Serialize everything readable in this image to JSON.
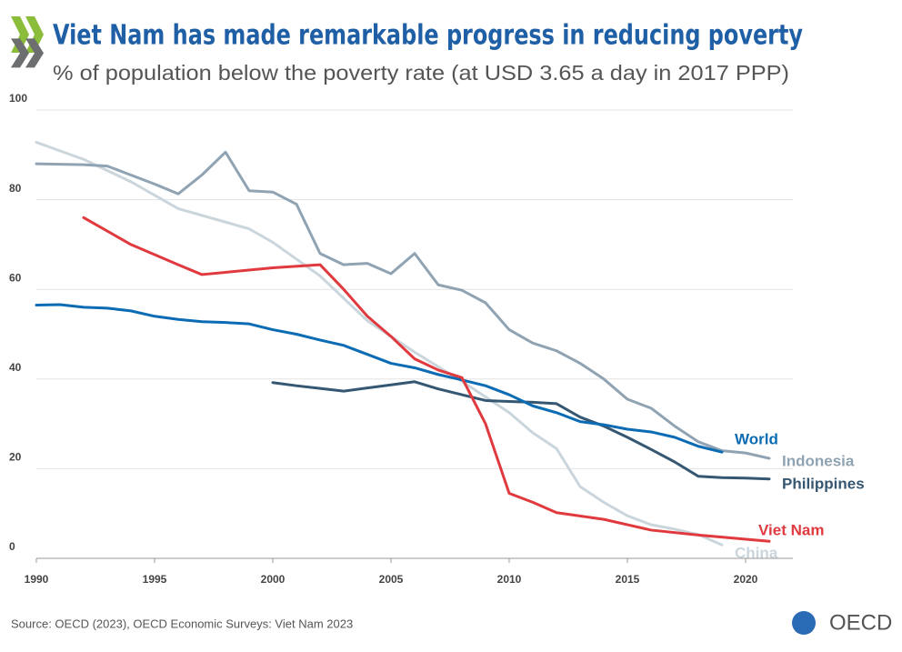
{
  "chart_data": {
    "type": "line",
    "title": "Viet Nam has made remarkable progress in reducing poverty",
    "subtitle": "% of population below the poverty rate (at USD 3.65 a day in 2017 PPP)",
    "source": "Source: OECD (2023), OECD Economic Surveys: Viet Nam 2023",
    "logo": "OECD",
    "xlim": [
      1990,
      2022
    ],
    "xticks": [
      1990,
      1995,
      2000,
      2005,
      2010,
      2015,
      2020
    ],
    "ylim": [
      0,
      100
    ],
    "yticks": [
      0,
      20,
      40,
      60,
      80,
      100
    ],
    "grid": true,
    "series": [
      {
        "name": "China",
        "color": "#cbd5dc",
        "x": [
          1990,
          1992,
          1994,
          1996,
          1998,
          1999,
          2000,
          2002,
          2004,
          2006,
          2008,
          2010,
          2011,
          2012,
          2013,
          2014,
          2015,
          2016,
          2017,
          2018,
          2019
        ],
        "values": [
          92.8,
          89,
          84,
          78,
          75,
          73.5,
          70.5,
          63,
          53,
          46,
          39.5,
          32.5,
          28,
          24.5,
          16,
          12.5,
          9.5,
          7.5,
          6.5,
          5.3,
          3
        ]
      },
      {
        "name": "Indonesia",
        "color": "#8fa3b3",
        "x": [
          1990,
          1991,
          1992,
          1993,
          1994,
          1995,
          1996,
          1997,
          1998,
          1999,
          2000,
          2001,
          2002,
          2003,
          2004,
          2005,
          2006,
          2007,
          2008,
          2009,
          2010,
          2011,
          2012,
          2013,
          2014,
          2015,
          2016,
          2017,
          2018,
          2019,
          2020,
          2021
        ],
        "values": [
          88,
          87.9,
          87.8,
          87.5,
          85.5,
          83.5,
          81.3,
          85.5,
          90.6,
          82,
          81.7,
          79,
          68,
          65.5,
          65.8,
          63.5,
          68,
          61,
          59.8,
          57,
          51,
          48,
          46.3,
          43.5,
          40,
          35.5,
          33.5,
          29.5,
          26,
          24,
          23.5,
          22.3
        ]
      },
      {
        "name": "Philippines",
        "color": "#365772",
        "x": [
          2000,
          2001,
          2002,
          2003,
          2004,
          2005,
          2006,
          2007,
          2008,
          2009,
          2010,
          2011,
          2012,
          2013,
          2014,
          2015,
          2016,
          2017,
          2018,
          2019,
          2020,
          2021
        ],
        "values": [
          39.2,
          38.5,
          37.9,
          37.3,
          38,
          38.7,
          39.4,
          37.8,
          36.5,
          35.2,
          35,
          34.8,
          34.5,
          31.5,
          29.5,
          27,
          24.3,
          21.5,
          18.3,
          18,
          17.9,
          17.7
        ]
      },
      {
        "name": "World",
        "color": "#0b6bb3",
        "x": [
          1990,
          1991,
          1992,
          1993,
          1994,
          1995,
          1996,
          1997,
          1998,
          1999,
          2000,
          2001,
          2002,
          2003,
          2004,
          2005,
          2006,
          2007,
          2008,
          2009,
          2010,
          2011,
          2012,
          2013,
          2014,
          2015,
          2016,
          2017,
          2018,
          2019
        ],
        "values": [
          56.5,
          56.6,
          56,
          55.8,
          55.2,
          54,
          53.3,
          52.8,
          52.6,
          52.3,
          51,
          50,
          48.7,
          47.5,
          45.5,
          43.5,
          42.5,
          41,
          39.8,
          38.5,
          36.5,
          34,
          32.5,
          30.5,
          29.8,
          28.8,
          28.2,
          27,
          25,
          23.7
        ]
      },
      {
        "name": "Viet Nam",
        "color": "#e0393e",
        "x": [
          1992,
          1994,
          1996,
          1997,
          1998,
          2000,
          2002,
          2003,
          2004,
          2005,
          2006,
          2007,
          2008,
          2009,
          2010,
          2011,
          2012,
          2014,
          2016,
          2018,
          2021
        ],
        "values": [
          76,
          70,
          65.5,
          63.3,
          63.8,
          64.8,
          65.5,
          60,
          54,
          49.5,
          44.5,
          42,
          40.3,
          30,
          14.5,
          12.5,
          10.2,
          8.7,
          6.3,
          5.2,
          3.8
        ]
      }
    ]
  }
}
